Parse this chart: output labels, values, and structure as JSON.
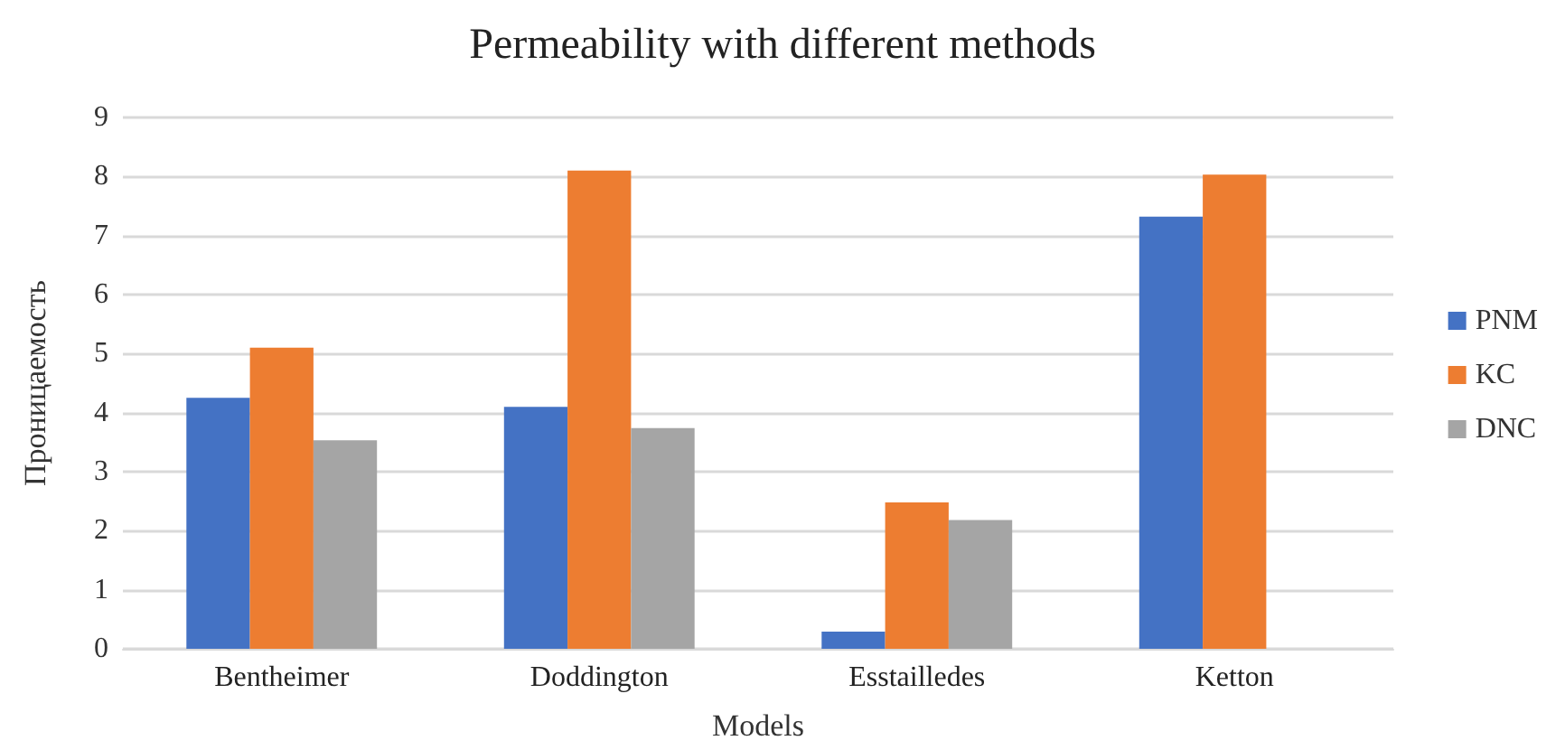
{
  "chart_data": {
    "type": "bar",
    "title": "Permeability with different methods",
    "xlabel": "Models",
    "ylabel": "Проницаемость",
    "categories": [
      "Bentheimer",
      "Doddington",
      "Esstailledes",
      "Ketton"
    ],
    "series": [
      {
        "name": "PNM",
        "color": "#4472c4",
        "values": [
          4.25,
          4.1,
          0.29,
          7.32
        ]
      },
      {
        "name": "KC",
        "color": "#ed7d31",
        "values": [
          5.1,
          8.1,
          2.48,
          8.03
        ]
      },
      {
        "name": "DNC",
        "color": "#a5a5a5",
        "values": [
          3.53,
          3.74,
          2.18,
          null
        ]
      }
    ],
    "ylim": [
      0,
      9
    ],
    "yticks": [
      0,
      1,
      2,
      3,
      4,
      5,
      6,
      7,
      8,
      9
    ],
    "grid": "y",
    "legend": "right"
  }
}
